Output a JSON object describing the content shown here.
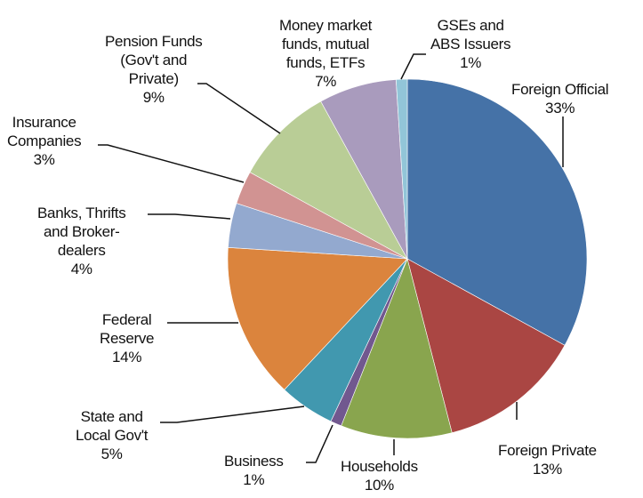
{
  "chart_data": {
    "type": "pie",
    "title": "",
    "start_angle_deg": 0,
    "direction": "clockwise",
    "slices": [
      {
        "label": "Foreign Official",
        "value": 33,
        "display": "33%",
        "color": "#4572a7"
      },
      {
        "label": "Foreign Private",
        "value": 13,
        "display": "13%",
        "color": "#aa4643"
      },
      {
        "label": "Households",
        "value": 10,
        "display": "10%",
        "color": "#89a54e"
      },
      {
        "label": "Business",
        "value": 1,
        "display": "1%",
        "color": "#71588f"
      },
      {
        "label": "State and Local Gov't",
        "value": 5,
        "display": "5%",
        "color": "#4198af"
      },
      {
        "label": "Federal Reserve",
        "value": 14,
        "display": "14%",
        "color": "#db843d"
      },
      {
        "label": "Banks, Thrifts and Broker-dealers",
        "value": 4,
        "display": "4%",
        "color": "#93a9cf"
      },
      {
        "label": "Insurance Companies",
        "value": 3,
        "display": "3%",
        "color": "#d19392"
      },
      {
        "label": "Pension Funds (Gov't and Private)",
        "value": 9,
        "display": "9%",
        "color": "#b9cd96"
      },
      {
        "label": "Money market funds, mutual funds, ETFs",
        "value": 7,
        "display": "7%",
        "color": "#a99bbd"
      },
      {
        "label": "GSEs and ABS Issuers",
        "value": 1,
        "display": "1%",
        "color": "#92c5d8"
      }
    ]
  },
  "labels": {
    "foreign_official": "Foreign Official\n33%",
    "foreign_private": "Foreign Private\n13%",
    "households": "Households\n10%",
    "business": "Business\n1%",
    "state_local": "State and\nLocal Gov't\n5%",
    "federal_reserve": "Federal\nReserve\n14%",
    "banks": "Banks, Thrifts\nand Broker-\ndealers\n4%",
    "insurance": "Insurance\nCompanies\n3%",
    "pension": "Pension Funds\n(Gov't and\nPrivate)\n9%",
    "money_market": "Money market\nfunds, mutual\nfunds, ETFs\n7%",
    "gses": "GSEs and\nABS Issuers\n1%"
  }
}
